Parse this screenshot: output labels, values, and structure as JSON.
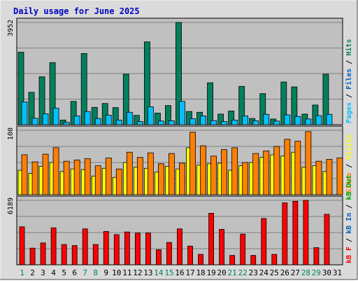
{
  "chart_data": {
    "type": "bar",
    "title": "Daily usage for June 2025",
    "categories": [
      "1",
      "2",
      "3",
      "4",
      "5",
      "6",
      "7",
      "8",
      "9",
      "10",
      "11",
      "12",
      "13",
      "14",
      "15",
      "16",
      "17",
      "18",
      "19",
      "20",
      "21",
      "22",
      "23",
      "24",
      "25",
      "26",
      "27",
      "28",
      "29",
      "30",
      "31"
    ],
    "weekend_days": [
      "1",
      "7",
      "8",
      "14",
      "15",
      "21",
      "22",
      "28",
      "29"
    ],
    "panels": [
      {
        "id": "hits-files-pages",
        "ymax_label": "3952",
        "ymax": 3952,
        "series": [
          {
            "name": "Hits",
            "color": "#00805c",
            "values": [
              2800,
              1250,
              1850,
              2400,
              180,
              900,
              2750,
              670,
              820,
              660,
              1950,
              360,
              3200,
              450,
              740,
              3952,
              510,
              480,
              1620,
              410,
              530,
              1480,
              240,
              1200,
              220,
              1650,
              1460,
              410,
              760,
              1950,
              0
            ]
          },
          {
            "name": "Files",
            "color": "#00c0ff",
            "values": [
              880,
              250,
              420,
              640,
              90,
              340,
              510,
              240,
              370,
              180,
              480,
              120,
              690,
              140,
              150,
              900,
              230,
              340,
              160,
              120,
              180,
              340,
              150,
              400,
              140,
              380,
              320,
              220,
              350,
              400,
              0
            ]
          }
        ],
        "right_label": [
          {
            "text": "Pages",
            "color": "#00c0ff"
          },
          {
            "text": " / ",
            "color": "#000000"
          },
          {
            "text": "Files",
            "color": "#0060c0"
          },
          {
            "text": " / ",
            "color": "#000000"
          },
          {
            "text": "Hits",
            "color": "#00805c"
          }
        ]
      },
      {
        "id": "visits-sites",
        "ymax_label": "100",
        "ymax": 100,
        "series": [
          {
            "name": "Visits",
            "color": "#ffff00",
            "values": [
              38,
              33,
              44,
              50,
              36,
              40,
              39,
              29,
              41,
              27,
              50,
              43,
              41,
              35,
              44,
              40,
              73,
              46,
              48,
              49,
              38,
              45,
              50,
              58,
              62,
              60,
              66,
              43,
              45,
              36,
              0
            ]
          },
          {
            "name": "Sites",
            "color": "#ff8000",
            "values": [
              62,
              51,
              63,
              73,
              52,
              54,
              56,
              45,
              57,
              40,
              66,
              58,
              65,
              48,
              64,
              49,
              97,
              76,
              60,
              70,
              73,
              50,
              64,
              68,
              75,
              86,
              83,
              98,
              52,
              55,
              57
            ]
          }
        ],
        "right_label": [
          {
            "text": "Sites",
            "color": "#ff8000"
          },
          {
            "text": " / ",
            "color": "#000000"
          },
          {
            "text": "Visits",
            "color": "#ffff00"
          }
        ]
      },
      {
        "id": "kb",
        "ymax_label": "6189",
        "ymax": 6189,
        "series": [
          {
            "name": "kB F",
            "color": "#ff0000",
            "values": [
              3650,
              1600,
              2100,
              3550,
              1950,
              1850,
              3450,
              1950,
              3200,
              2900,
              3150,
              3050,
              3050,
              1450,
              2150,
              3450,
              1800,
              1000,
              4950,
              3400,
              900,
              2950,
              900,
              4450,
              1000,
              5950,
              6100,
              6189,
              1650,
              4850,
              0
            ]
          }
        ],
        "right_label": [
          {
            "text": "kB F",
            "color": "#ff0000"
          },
          {
            "text": " / ",
            "color": "#000000"
          },
          {
            "text": "kB In",
            "color": "#0060c0"
          },
          {
            "text": " / ",
            "color": "#000000"
          },
          {
            "text": "kB Out",
            "color": "#00a000"
          }
        ]
      }
    ],
    "colors": {
      "plot_bg": "#c0c0c0",
      "frame_bg": "#dadada",
      "grid": "#808080",
      "title": "#0000c0",
      "weekday_label": "#000000",
      "weekend_label": "#00805c"
    }
  }
}
